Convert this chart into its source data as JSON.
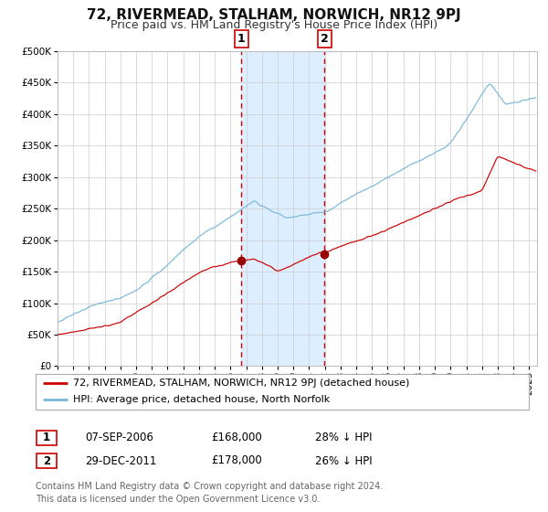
{
  "title": "72, RIVERMEAD, STALHAM, NORWICH, NR12 9PJ",
  "subtitle": "Price paid vs. HM Land Registry's House Price Index (HPI)",
  "ylim": [
    0,
    500000
  ],
  "yticks": [
    0,
    50000,
    100000,
    150000,
    200000,
    250000,
    300000,
    350000,
    400000,
    450000,
    500000
  ],
  "ytick_labels": [
    "£0",
    "£50K",
    "£100K",
    "£150K",
    "£200K",
    "£250K",
    "£300K",
    "£350K",
    "£400K",
    "£450K",
    "£500K"
  ],
  "hpi_color": "#7ab8d9",
  "price_color": "#cc0000",
  "marker_color": "#990000",
  "shade_color": "#ddeeff",
  "vline_color": "#cc0000",
  "grid_color": "#cccccc",
  "background_color": "#ffffff",
  "title_fontsize": 11,
  "subtitle_fontsize": 9,
  "tick_fontsize": 7.5,
  "purchase1": {
    "date_num": 2006.68,
    "price": 168000,
    "label": "1",
    "date_str": "07-SEP-2006",
    "pct": "28%"
  },
  "purchase2": {
    "date_num": 2011.99,
    "price": 178000,
    "label": "2",
    "date_str": "29-DEC-2011",
    "pct": "26%"
  },
  "legend_entries": [
    "72, RIVERMEAD, STALHAM, NORWICH, NR12 9PJ (detached house)",
    "HPI: Average price, detached house, North Norfolk"
  ],
  "footer_text": "Contains HM Land Registry data © Crown copyright and database right 2024.\nThis data is licensed under the Open Government Licence v3.0.",
  "xlim_start": 1995.0,
  "xlim_end": 2025.5
}
